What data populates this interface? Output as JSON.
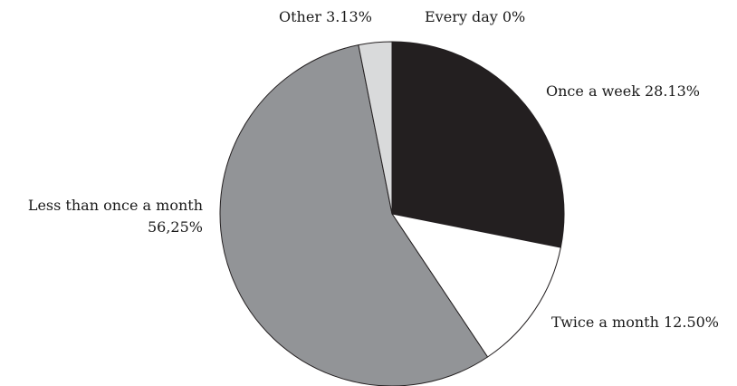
{
  "chart_data": {
    "type": "pie",
    "title": "",
    "slices": [
      {
        "label": "Every day",
        "value": 0,
        "value_text": "0%",
        "color": "#231f20"
      },
      {
        "label": "Once a week",
        "value": 28.13,
        "value_text": "28.13%",
        "color": "#231f20"
      },
      {
        "label": "Twice a month",
        "value": 12.5,
        "value_text": "12.50%",
        "color": "#ffffff"
      },
      {
        "label": "Less than once a month",
        "value": 56.25,
        "value_text": "56,25%",
        "color": "#929497"
      },
      {
        "label": "Other",
        "value": 3.13,
        "value_text": "3.13%",
        "color": "#d9dadb"
      }
    ],
    "start": "12 o'clock",
    "direction": "clockwise",
    "stroke_color": "#231f20",
    "legend": "none (labels beside slices)"
  }
}
